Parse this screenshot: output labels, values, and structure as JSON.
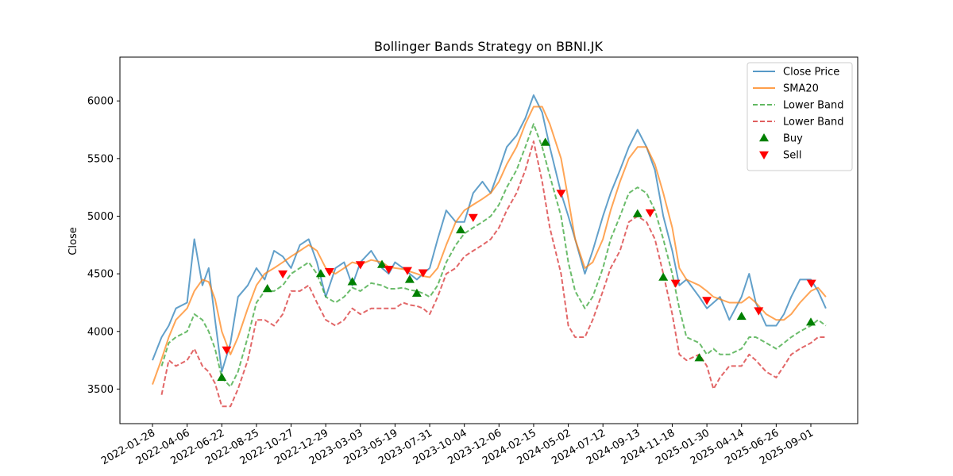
{
  "chart_data": {
    "type": "line",
    "title": "Bollinger Bands Strategy on BBNI.JK",
    "xlabel": "",
    "ylabel": "Close",
    "ylim": [
      3200,
      6380
    ],
    "grid": false,
    "legend_position": "top-right",
    "x_tick_labels": [
      "2022-01-28",
      "2022-04-06",
      "2022-06-22",
      "2022-08-25",
      "2022-10-27",
      "2022-12-29",
      "2023-03-03",
      "2023-05-19",
      "2023-07-31",
      "2023-10-04",
      "2023-12-06",
      "2024-02-15",
      "2024-05-02",
      "2024-07-12",
      "2024-09-13",
      "2024-11-18",
      "2025-01-30",
      "2025-04-14",
      "2025-06-26",
      "2025-09-01"
    ],
    "y_ticks": [
      3500,
      4000,
      4500,
      5000,
      5500,
      6000
    ],
    "dates": [
      "2022-01-28",
      "2022-02-15",
      "2022-03-01",
      "2022-03-15",
      "2022-04-06",
      "2022-04-22",
      "2022-05-10",
      "2022-05-24",
      "2022-06-07",
      "2022-06-22",
      "2022-07-08",
      "2022-07-22",
      "2022-08-09",
      "2022-08-25",
      "2022-09-09",
      "2022-09-26",
      "2022-10-12",
      "2022-10-27",
      "2022-11-12",
      "2022-11-28",
      "2022-12-13",
      "2022-12-29",
      "2023-01-16",
      "2023-02-01",
      "2023-02-16",
      "2023-03-03",
      "2023-03-27",
      "2023-04-20",
      "2023-05-05",
      "2023-05-19",
      "2023-06-05",
      "2023-06-19",
      "2023-07-04",
      "2023-07-17",
      "2023-07-31",
      "2023-08-15",
      "2023-08-31",
      "2023-09-18",
      "2023-10-04",
      "2023-10-20",
      "2023-11-06",
      "2023-11-21",
      "2023-12-06",
      "2023-12-22",
      "2024-01-11",
      "2024-01-29",
      "2024-02-15",
      "2024-03-05",
      "2024-03-22",
      "2024-04-16",
      "2024-05-02",
      "2024-05-16",
      "2024-06-05",
      "2024-06-21",
      "2024-07-12",
      "2024-07-26",
      "2024-08-12",
      "2024-08-28",
      "2024-09-13",
      "2024-09-30",
      "2024-10-16",
      "2024-11-01",
      "2024-11-18",
      "2024-12-03",
      "2024-12-18",
      "2025-01-14",
      "2025-01-30",
      "2025-02-13",
      "2025-02-27",
      "2025-03-19",
      "2025-04-14",
      "2025-04-30",
      "2025-05-14",
      "2025-06-05",
      "2025-06-26",
      "2025-07-11",
      "2025-07-25",
      "2025-08-11",
      "2025-09-01",
      "2025-09-15",
      "2025-09-30"
    ],
    "series": [
      {
        "name": "Close Price",
        "color": "#1f77b4",
        "style": "solid",
        "values": [
          3750,
          3950,
          4050,
          4200,
          4250,
          4800,
          4400,
          4550,
          4100,
          3650,
          3900,
          4300,
          4400,
          4550,
          4450,
          4700,
          4650,
          4550,
          4750,
          4800,
          4600,
          4300,
          4550,
          4600,
          4400,
          4600,
          4700,
          4550,
          4500,
          4600,
          4550,
          4500,
          4450,
          4500,
          4550,
          4800,
          5050,
          4950,
          4950,
          5200,
          5300,
          5200,
          5400,
          5600,
          5700,
          5850,
          6050,
          5900,
          5600,
          5200,
          5000,
          4800,
          4500,
          4700,
          5000,
          5200,
          5400,
          5600,
          5750,
          5600,
          5400,
          5000,
          4700,
          4400,
          4450,
          4300,
          4200,
          4250,
          4300,
          4100,
          4300,
          4500,
          4250,
          4050,
          4050,
          4150,
          4300,
          4450,
          4450,
          4350,
          4200
        ]
      },
      {
        "name": "SMA20",
        "color": "#ff7f0e",
        "style": "solid",
        "values": [
          3540,
          3760,
          3950,
          4100,
          4200,
          4350,
          4450,
          4430,
          4280,
          4000,
          3800,
          3950,
          4200,
          4400,
          4500,
          4550,
          4600,
          4650,
          4700,
          4750,
          4700,
          4550,
          4500,
          4550,
          4600,
          4580,
          4620,
          4600,
          4560,
          4550,
          4540,
          4520,
          4500,
          4480,
          4470,
          4550,
          4750,
          4950,
          5050,
          5100,
          5150,
          5200,
          5300,
          5450,
          5600,
          5800,
          5950,
          5950,
          5800,
          5500,
          5150,
          4800,
          4550,
          4600,
          4800,
          5050,
          5300,
          5500,
          5600,
          5600,
          5450,
          5200,
          4900,
          4550,
          4450,
          4400,
          4350,
          4300,
          4280,
          4250,
          4250,
          4300,
          4250,
          4150,
          4100,
          4100,
          4150,
          4250,
          4350,
          4380,
          4300
        ]
      },
      {
        "name": "Lower Band",
        "color": "#2ca02c",
        "style": "dashed",
        "values": [
          null,
          3700,
          3900,
          3950,
          4000,
          4150,
          4100,
          4000,
          3850,
          3600,
          3520,
          3650,
          3950,
          4250,
          4350,
          4350,
          4400,
          4500,
          4550,
          4600,
          4500,
          4300,
          4250,
          4300,
          4380,
          4350,
          4420,
          4400,
          4370,
          4370,
          4380,
          4360,
          4350,
          4330,
          4300,
          4400,
          4600,
          4750,
          4850,
          4900,
          4950,
          5000,
          5100,
          5250,
          5400,
          5600,
          5800,
          5600,
          5350,
          5000,
          4600,
          4350,
          4200,
          4300,
          4550,
          4800,
          5000,
          5200,
          5250,
          5200,
          5050,
          4800,
          4500,
          4200,
          3950,
          3900,
          3800,
          3850,
          3800,
          3800,
          3850,
          3950,
          3950,
          3900,
          3850,
          3900,
          3950,
          4000,
          4050,
          4100,
          4050
        ]
      },
      {
        "name": "Lower Band",
        "color": "#d62728",
        "style": "dashed",
        "values": [
          null,
          3450,
          3750,
          3700,
          3750,
          3850,
          3700,
          3650,
          3550,
          3350,
          3350,
          3500,
          3750,
          4100,
          4100,
          4050,
          4150,
          4350,
          4350,
          4400,
          4250,
          4100,
          4050,
          4100,
          4200,
          4150,
          4200,
          4200,
          4200,
          4200,
          4250,
          4230,
          4220,
          4200,
          4150,
          4300,
          4500,
          4550,
          4650,
          4700,
          4750,
          4800,
          4900,
          5050,
          5200,
          5400,
          5650,
          5300,
          4900,
          4500,
          4050,
          3950,
          3950,
          4100,
          4350,
          4550,
          4700,
          4950,
          5000,
          4950,
          4800,
          4500,
          4150,
          3800,
          3750,
          3800,
          3700,
          3500,
          3600,
          3700,
          3700,
          3800,
          3750,
          3650,
          3600,
          3700,
          3800,
          3850,
          3900,
          3950,
          3950
        ]
      }
    ],
    "buy_signals": [
      {
        "date": "2022-06-22",
        "value": 3600
      },
      {
        "date": "2022-09-14",
        "value": 4370
      },
      {
        "date": "2022-12-20",
        "value": 4500
      },
      {
        "date": "2023-02-16",
        "value": 4430
      },
      {
        "date": "2023-04-20",
        "value": 4580
      },
      {
        "date": "2023-06-19",
        "value": 4450
      },
      {
        "date": "2023-07-04",
        "value": 4330
      },
      {
        "date": "2023-09-27",
        "value": 4880
      },
      {
        "date": "2024-03-12",
        "value": 5640
      },
      {
        "date": "2024-09-13",
        "value": 5020
      },
      {
        "date": "2024-11-01",
        "value": 4470
      },
      {
        "date": "2025-01-14",
        "value": 3770
      },
      {
        "date": "2025-04-14",
        "value": 4130
      },
      {
        "date": "2025-09-01",
        "value": 4080
      }
    ],
    "sell_signals": [
      {
        "date": "2022-07-01",
        "value": 3840
      },
      {
        "date": "2022-10-12",
        "value": 4500
      },
      {
        "date": "2023-01-05",
        "value": 4520
      },
      {
        "date": "2023-03-03",
        "value": 4580
      },
      {
        "date": "2023-05-05",
        "value": 4540
      },
      {
        "date": "2023-06-14",
        "value": 4530
      },
      {
        "date": "2023-07-17",
        "value": 4510
      },
      {
        "date": "2023-10-20",
        "value": 4990
      },
      {
        "date": "2024-04-16",
        "value": 5200
      },
      {
        "date": "2024-10-07",
        "value": 5030
      },
      {
        "date": "2024-11-25",
        "value": 4420
      },
      {
        "date": "2025-01-30",
        "value": 4270
      },
      {
        "date": "2025-05-20",
        "value": 4180
      },
      {
        "date": "2025-09-02",
        "value": 4420
      }
    ],
    "legend": [
      {
        "label": "Close Price",
        "color": "#1f77b4",
        "kind": "line"
      },
      {
        "label": "SMA20",
        "color": "#ff7f0e",
        "kind": "line"
      },
      {
        "label": "Lower Band",
        "color": "#2ca02c",
        "kind": "dashed"
      },
      {
        "label": "Lower Band",
        "color": "#d62728",
        "kind": "dashed"
      },
      {
        "label": "Buy",
        "color": "#008000",
        "kind": "triangle-up"
      },
      {
        "label": "Sell",
        "color": "#ff0000",
        "kind": "triangle-down"
      }
    ]
  }
}
